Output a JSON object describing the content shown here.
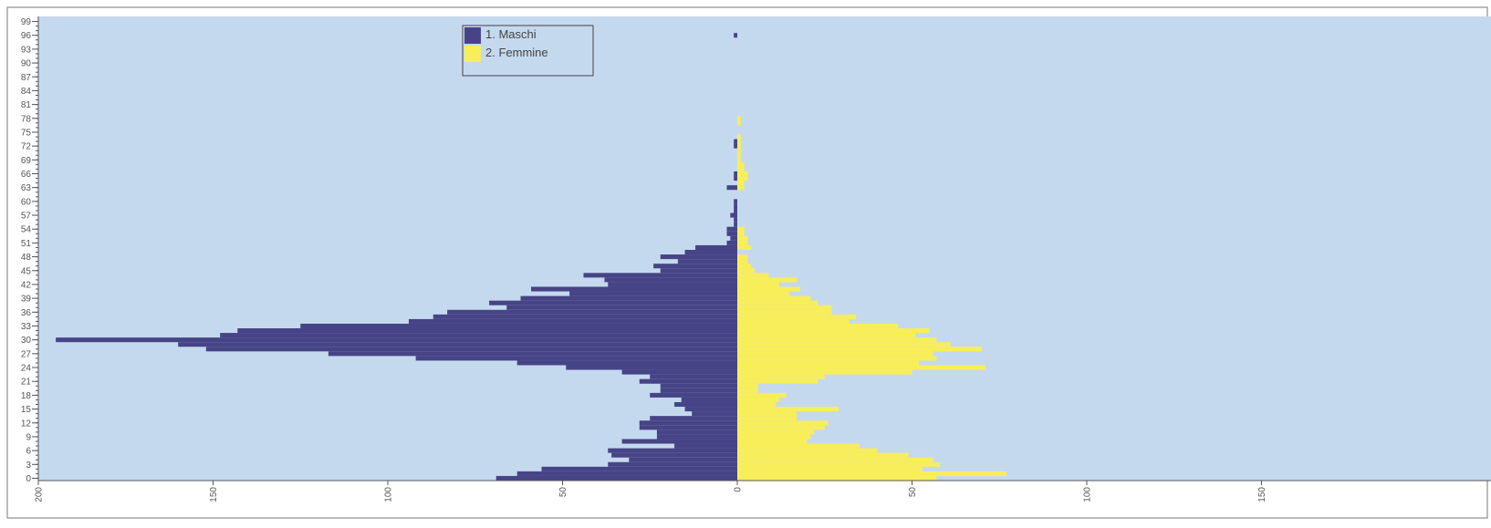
{
  "chart_data": {
    "type": "bar",
    "orientation": "horizontal",
    "layout": "population-pyramid",
    "title": "",
    "xlabel": "",
    "ylabel": "",
    "xlim": [
      -200,
      200
    ],
    "ylim": [
      0,
      100
    ],
    "grid": false,
    "legend_position": "top-left",
    "colors": {
      "plot_background": "#c5d9ee",
      "Maschi": "#464486",
      "Femmine": "#f7ee5a",
      "axis": "#555555",
      "legend_border": "#555555"
    },
    "x_ticks": [
      {
        "value": -200,
        "label": "200"
      },
      {
        "value": -150,
        "label": "150"
      },
      {
        "value": -100,
        "label": "100"
      },
      {
        "value": -50,
        "label": "50"
      },
      {
        "value": 0,
        "label": "0"
      },
      {
        "value": 50,
        "label": "50"
      },
      {
        "value": 100,
        "label": "100"
      },
      {
        "value": 150,
        "label": "150"
      }
    ],
    "y_ticks": [
      "0",
      "3",
      "6",
      "9",
      "12",
      "15",
      "18",
      "21",
      "24",
      "27",
      "30",
      "33",
      "36",
      "39",
      "42",
      "45",
      "48",
      "51",
      "54",
      "57",
      "60",
      "63",
      "66",
      "69",
      "72",
      "75",
      "78",
      "81",
      "84",
      "87",
      "90",
      "93",
      "96",
      "99"
    ],
    "ages": [
      0,
      1,
      2,
      3,
      4,
      5,
      6,
      7,
      8,
      9,
      10,
      11,
      12,
      13,
      14,
      15,
      16,
      17,
      18,
      19,
      20,
      21,
      22,
      23,
      24,
      25,
      26,
      27,
      28,
      29,
      30,
      31,
      32,
      33,
      34,
      35,
      36,
      37,
      38,
      39,
      40,
      41,
      42,
      43,
      44,
      45,
      46,
      47,
      48,
      49,
      50,
      51,
      52,
      53,
      54,
      55,
      56,
      57,
      58,
      59,
      60,
      61,
      62,
      63,
      64,
      65,
      66,
      67,
      68,
      69,
      70,
      71,
      72,
      73,
      74,
      75,
      76,
      77,
      78,
      79,
      80,
      81,
      82,
      83,
      84,
      85,
      86,
      87,
      88,
      89,
      90,
      91,
      92,
      93,
      94,
      95,
      96,
      97,
      98,
      99
    ],
    "series": [
      {
        "name": "1. Maschi",
        "values": [
          69,
          63,
          56,
          37,
          31,
          36,
          37,
          18,
          33,
          23,
          23,
          28,
          28,
          25,
          13,
          15,
          18,
          16,
          25,
          22,
          22,
          28,
          25,
          33,
          49,
          63,
          92,
          117,
          152,
          160,
          195,
          148,
          143,
          125,
          94,
          87,
          83,
          66,
          71,
          62,
          48,
          59,
          37,
          38,
          44,
          22,
          24,
          17,
          22,
          15,
          12,
          3,
          2,
          3,
          3,
          1,
          1,
          2,
          1,
          1,
          1,
          0,
          0,
          3,
          0,
          1,
          1,
          0,
          0,
          0,
          0,
          0,
          1,
          1,
          0,
          0,
          0,
          0,
          0,
          0,
          0,
          0,
          0,
          0,
          0,
          0,
          0,
          0,
          0,
          0,
          0,
          0,
          0,
          0,
          0,
          0,
          1,
          0,
          0,
          0
        ]
      },
      {
        "name": "2. Femmine",
        "values": [
          57,
          77,
          53,
          58,
          56,
          49,
          40,
          35,
          20,
          21,
          22,
          25,
          26,
          17,
          17,
          29,
          11,
          12,
          14,
          6,
          6,
          23,
          25,
          50,
          71,
          52,
          57,
          56,
          70,
          61,
          57,
          51,
          55,
          46,
          32,
          34,
          27,
          27,
          23,
          21,
          15,
          18,
          12,
          17,
          9,
          5,
          4,
          3,
          3,
          0,
          4,
          3,
          3,
          2,
          2,
          0,
          0,
          0,
          0,
          0,
          0,
          0,
          0,
          2,
          2,
          3,
          3,
          2,
          2,
          1,
          1,
          1,
          1,
          1,
          1,
          0,
          0,
          1,
          1,
          0,
          0,
          0,
          0,
          0,
          0,
          0,
          0,
          0,
          0,
          0,
          0,
          0,
          0,
          0,
          0,
          0,
          0,
          0,
          0,
          0
        ]
      }
    ]
  }
}
